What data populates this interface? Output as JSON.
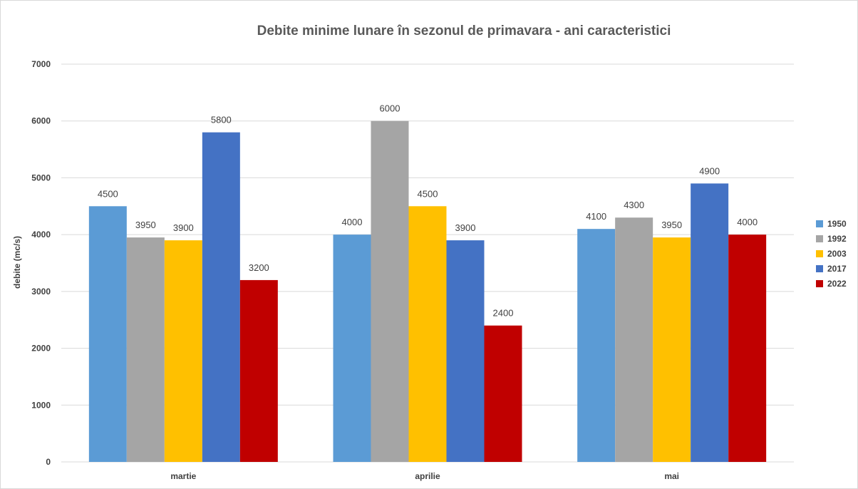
{
  "chart_data": {
    "type": "bar",
    "title": "Debite minime lunare în sezonul de primavara - ani caracteristici",
    "xlabel": "",
    "ylabel": "debite (mc/s)",
    "categories": [
      "martie",
      "aprilie",
      "mai"
    ],
    "ylim": [
      0,
      7000
    ],
    "yticks": [
      0,
      1000,
      2000,
      3000,
      4000,
      5000,
      6000,
      7000
    ],
    "grid": true,
    "legend_position": "right",
    "series": [
      {
        "name": "1950",
        "color": "#5b9bd5",
        "values": [
          4500,
          4000,
          4100
        ]
      },
      {
        "name": "1992",
        "color": "#a5a5a5",
        "values": [
          3950,
          6000,
          4300
        ]
      },
      {
        "name": "2003",
        "color": "#ffc000",
        "values": [
          3900,
          4500,
          3950
        ]
      },
      {
        "name": "2017",
        "color": "#4472c4",
        "values": [
          5800,
          3900,
          4900
        ]
      },
      {
        "name": "2022",
        "color": "#c00000",
        "values": [
          3200,
          2400,
          4000
        ]
      }
    ]
  }
}
